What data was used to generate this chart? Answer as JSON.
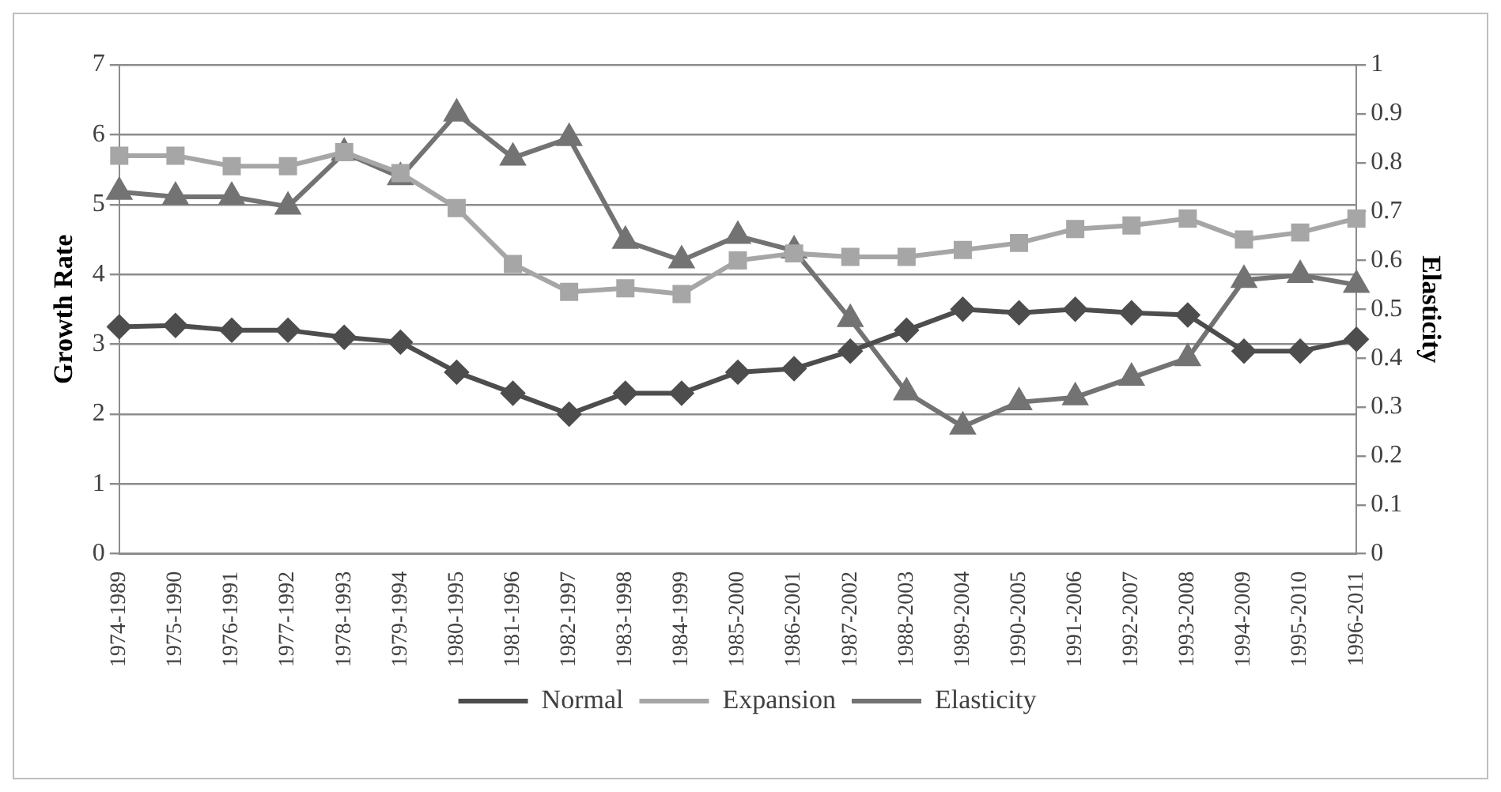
{
  "chart_data": {
    "type": "line",
    "ylabel": "Growth Rate",
    "y2label": "Elasticity",
    "categories": [
      "1974-1989",
      "1975-1990",
      "1976-1991",
      "1977-1992",
      "1978-1993",
      "1979-1994",
      "1980-1995",
      "1981-1996",
      "1982-1997",
      "1983-1998",
      "1984-1999",
      "1985-2000",
      "1986-2001",
      "1987-2002",
      "1988-2003",
      "1989-2004",
      "1990-2005",
      "1991-2006",
      "1992-2007",
      "1993-2008",
      "1994-2009",
      "1995-2010",
      "1996-2011"
    ],
    "series": [
      {
        "name": "Normal",
        "color": "#4d4d4d",
        "marker": "diamond",
        "values": [
          3.25,
          3.27,
          3.2,
          3.2,
          3.1,
          3.03,
          2.6,
          2.3,
          2.0,
          2.3,
          2.3,
          2.6,
          2.65,
          2.9,
          3.2,
          3.5,
          3.45,
          3.5,
          3.45,
          3.42,
          2.9,
          2.9,
          3.07
        ]
      },
      {
        "name": "Expansion",
        "color": "#a6a6a6",
        "marker": "square",
        "values": [
          5.7,
          5.7,
          5.55,
          5.55,
          5.75,
          5.45,
          4.95,
          4.15,
          3.75,
          3.8,
          3.72,
          4.2,
          4.3,
          4.25,
          4.25,
          4.35,
          4.45,
          4.65,
          4.7,
          4.8,
          4.5,
          4.6,
          4.8
        ]
      },
      {
        "name": "Elasticity",
        "color": "#737373",
        "marker": "triangle",
        "axis": "y2",
        "values": [
          0.74,
          0.73,
          0.73,
          0.71,
          0.82,
          0.77,
          0.9,
          0.81,
          0.85,
          0.64,
          0.6,
          0.65,
          0.62,
          0.48,
          0.33,
          0.26,
          0.31,
          0.32,
          0.36,
          0.4,
          0.56,
          0.57,
          0.55
        ]
      }
    ],
    "ylim": [
      0,
      7
    ],
    "yticks": [
      0,
      1,
      2,
      3,
      4,
      5,
      6,
      7
    ],
    "y2lim": [
      0,
      1
    ],
    "y2ticks": [
      0,
      0.1,
      0.2,
      0.3,
      0.4,
      0.5,
      0.6,
      0.7,
      0.8,
      0.9,
      1
    ],
    "grid": "y",
    "legend": "bottom",
    "line_style": "solid"
  }
}
